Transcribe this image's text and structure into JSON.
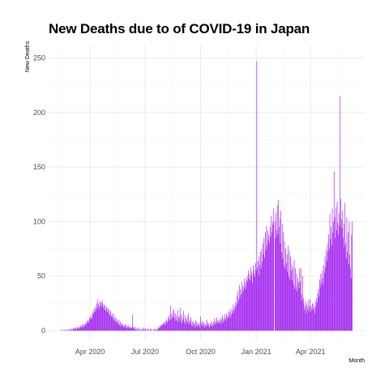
{
  "chart_data": {
    "type": "bar",
    "title": "New Deaths due to of COVID-19 in Japan",
    "xlabel": "Month",
    "ylabel": "New Deaths",
    "x_start": "2020-02-13",
    "x_end": "2021-06-09",
    "ylim": [
      0,
      260
    ],
    "yticks": [
      0,
      50,
      100,
      150,
      200,
      250
    ],
    "xticks": [
      {
        "label": "Apr 2020",
        "date": "2020-04-01"
      },
      {
        "label": "Jul 2020",
        "date": "2020-07-01"
      },
      {
        "label": "Oct 2020",
        "date": "2020-10-01"
      },
      {
        "label": "Jan 2021",
        "date": "2021-01-01"
      },
      {
        "label": "Apr 2021",
        "date": "2021-04-01"
      }
    ],
    "grid": true,
    "bar_color": "#a020f0",
    "segments": [
      {
        "from": "2020-02-13",
        "to": "2020-03-19",
        "values": [
          1,
          0,
          0,
          1,
          0,
          0,
          1,
          0,
          1,
          0,
          1,
          0,
          1,
          1,
          0,
          1,
          2,
          1,
          0,
          1,
          2,
          3,
          1,
          2,
          3,
          2,
          1,
          3,
          2,
          4,
          3,
          2,
          4,
          5,
          3,
          6
        ]
      },
      {
        "from": "2020-03-20",
        "to": "2020-04-30",
        "values": [
          3,
          5,
          4,
          6,
          5,
          8,
          6,
          9,
          7,
          10,
          8,
          12,
          10,
          14,
          12,
          11,
          15,
          18,
          16,
          20,
          17,
          22,
          19,
          25,
          21,
          29,
          24,
          20,
          27,
          23,
          26,
          22,
          28,
          25,
          21,
          24,
          19,
          23,
          18,
          22,
          20,
          17
        ]
      },
      {
        "from": "2020-05-01",
        "to": "2020-06-15",
        "values": [
          21,
          16,
          19,
          14,
          18,
          13,
          15,
          12,
          16,
          10,
          13,
          9,
          12,
          8,
          11,
          7,
          9,
          6,
          10,
          5,
          8,
          4,
          7,
          5,
          6,
          3,
          5,
          4,
          6,
          3,
          5,
          2,
          4,
          3,
          5,
          2,
          3,
          4,
          2,
          3,
          15,
          3,
          2,
          4,
          1,
          3
        ]
      },
      {
        "from": "2020-06-16",
        "to": "2020-07-31",
        "values": [
          1,
          2,
          0,
          1,
          3,
          0,
          2,
          1,
          0,
          1,
          2,
          0,
          1,
          3,
          1,
          0,
          2,
          1,
          0,
          1,
          2,
          0,
          1,
          0,
          2,
          1,
          0,
          1,
          0,
          1,
          0,
          2,
          1,
          0,
          1,
          2,
          1,
          3,
          2,
          4,
          3,
          5,
          4,
          6,
          5,
          7
        ]
      },
      {
        "from": "2020-08-01",
        "to": "2020-09-15",
        "values": [
          6,
          8,
          5,
          9,
          7,
          10,
          8,
          12,
          9,
          14,
          11,
          23,
          10,
          15,
          12,
          18,
          13,
          20,
          11,
          16,
          9,
          14,
          10,
          19,
          8,
          13,
          12,
          21,
          9,
          15,
          7,
          12,
          10,
          18,
          8,
          14,
          6,
          11,
          9,
          13,
          7,
          16,
          6,
          10,
          8,
          12
        ]
      },
      {
        "from": "2020-09-16",
        "to": "2020-10-31",
        "values": [
          5,
          9,
          4,
          8,
          6,
          7,
          3,
          10,
          5,
          8,
          4,
          6,
          5,
          7,
          3,
          13,
          6,
          9,
          4,
          8,
          5,
          7,
          3,
          6,
          4,
          10,
          5,
          8,
          6,
          4,
          3,
          7,
          5,
          9,
          4,
          6,
          8,
          5,
          11,
          7,
          9,
          6,
          12,
          8,
          10,
          7
        ]
      },
      {
        "from": "2020-11-01",
        "to": "2020-12-15",
        "values": [
          8,
          10,
          6,
          12,
          9,
          14,
          7,
          11,
          10,
          15,
          12,
          9,
          16,
          13,
          11,
          18,
          14,
          17,
          12,
          20,
          15,
          19,
          16,
          24,
          18,
          22,
          20,
          26,
          23,
          32,
          25,
          36,
          28,
          42,
          30,
          38,
          33,
          45,
          35,
          41,
          37,
          48,
          40,
          44,
          38,
          47
        ]
      },
      {
        "from": "2020-12-16",
        "to": "2021-01-31",
        "values": [
          42,
          50,
          45,
          55,
          48,
          52,
          46,
          58,
          50,
          54,
          44,
          60,
          52,
          56,
          49,
          62,
          55,
          247,
          58,
          64,
          51,
          68,
          60,
          72,
          57,
          75,
          63,
          80,
          70,
          85,
          67,
          90,
          74,
          96,
          78,
          92,
          83,
          88,
          80,
          95,
          86,
          105,
          90,
          100,
          97,
          112
        ]
      },
      {
        "from": "2021-02-01",
        "to": "2021-03-15",
        "values": [
          100,
          85,
          108,
          92,
          115,
          88,
          120,
          95,
          103,
          80,
          110,
          72,
          98,
          66,
          90,
          60,
          82,
          57,
          75,
          62,
          70,
          54,
          78,
          50,
          73,
          47,
          68,
          55,
          62,
          46,
          58,
          42,
          65,
          38,
          57,
          40,
          52,
          36,
          48,
          44,
          39,
          57,
          45
        ]
      },
      {
        "from": "2021-03-16",
        "to": "2021-04-30",
        "values": [
          57,
          33,
          28,
          50,
          30,
          25,
          19,
          22,
          27,
          16,
          24,
          20,
          28,
          18,
          22,
          29,
          17,
          23,
          20,
          25,
          19,
          24,
          21,
          16,
          27,
          22,
          30,
          26,
          34,
          38,
          31,
          47,
          40,
          52,
          44,
          55,
          48,
          42,
          60,
          53,
          68,
          58,
          74,
          64,
          80,
          72
        ]
      },
      {
        "from": "2021-05-01",
        "to": "2021-06-09",
        "values": [
          88,
          75,
          107,
          84,
          95,
          78,
          112,
          90,
          100,
          146,
          104,
          85,
          113,
          92,
          118,
          99,
          88,
          108,
          96,
          215,
          121,
          102,
          94,
          110,
          85,
          98,
          77,
          117,
          80,
          66,
          104,
          72,
          90,
          61,
          100,
          70,
          57,
          48,
          88,
          100
        ]
      }
    ]
  }
}
